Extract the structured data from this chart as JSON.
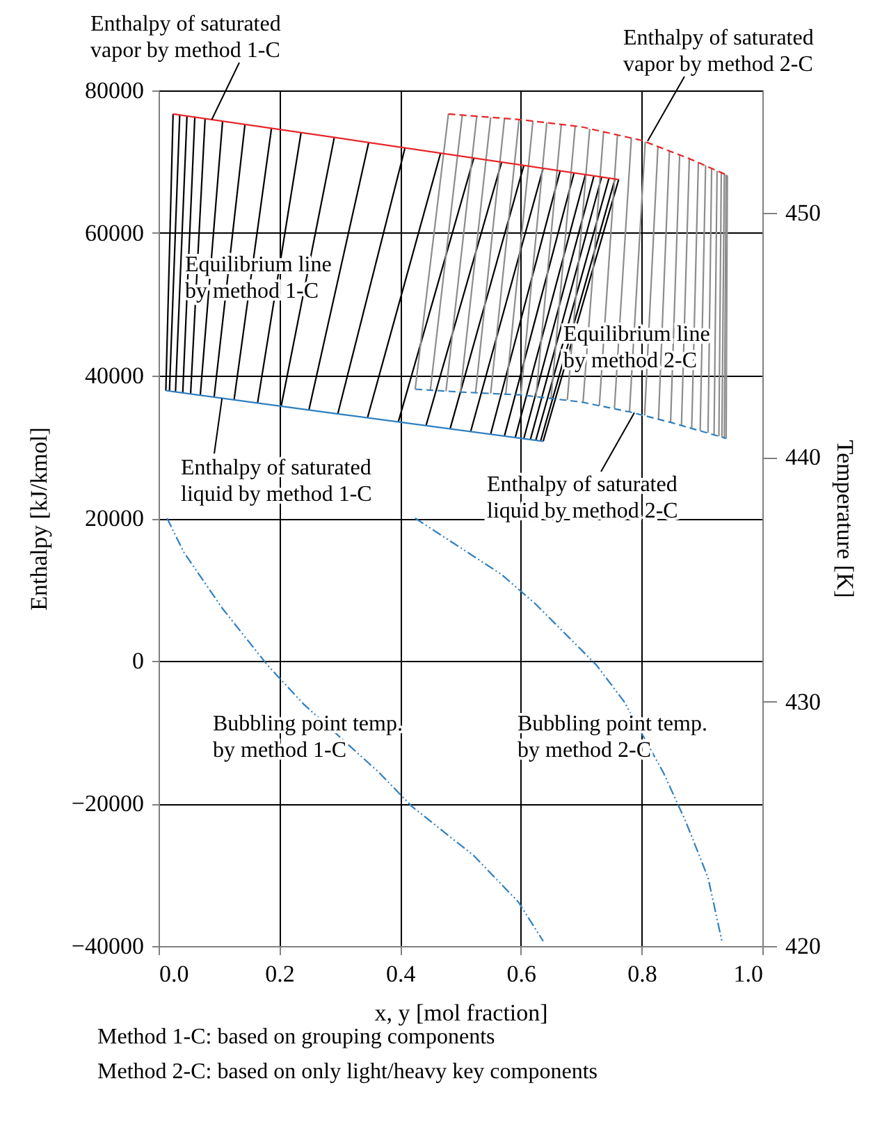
{
  "chart_data": {
    "type": "line",
    "xlabel": "x, y [mol fraction]",
    "ylabel": "Enthalpy [kJ/kmol]",
    "y2label": "Temperature [K]",
    "xlim": [
      0,
      1
    ],
    "xticks": [
      {
        "value": 0,
        "label": "0.0"
      },
      {
        "value": 0.2,
        "label": "0.2"
      },
      {
        "value": 0.4,
        "label": "0.4"
      },
      {
        "value": 0.6,
        "label": "0.6"
      },
      {
        "value": 0.8,
        "label": "0.8"
      },
      {
        "value": 1,
        "label": "1.0"
      }
    ],
    "ylim": [
      -40000,
      80000
    ],
    "yticks": [
      -40000,
      -20000,
      0,
      20000,
      40000,
      60000,
      80000
    ],
    "y2lim": [
      420,
      455
    ],
    "y2ticks": [
      420,
      430,
      440,
      450
    ],
    "grid": true,
    "series": [
      {
        "color": "#000000",
        "x": [
          0.012,
          0.024
        ],
        "values": [
          37900,
          76700
        ]
      },
      {
        "color": "#000000",
        "x": [
          0.018,
          0.035
        ],
        "values": [
          37800,
          76600
        ]
      },
      {
        "color": "#000000",
        "x": [
          0.028,
          0.047
        ],
        "values": [
          37700,
          76400
        ]
      },
      {
        "color": "#000000",
        "x": [
          0.04,
          0.06
        ],
        "values": [
          37600,
          76300
        ]
      },
      {
        "color": "#000000",
        "x": [
          0.053,
          0.077
        ],
        "values": [
          37400,
          76000
        ]
      },
      {
        "color": "#000000",
        "x": [
          0.069,
          0.106
        ],
        "values": [
          37200,
          75700
        ]
      },
      {
        "color": "#000000",
        "x": [
          0.092,
          0.143
        ],
        "values": [
          37000,
          75200
        ]
      },
      {
        "color": "#000000",
        "x": [
          0.125,
          0.187
        ],
        "values": [
          36600,
          74700
        ]
      },
      {
        "color": "#000000",
        "x": [
          0.164,
          0.236
        ],
        "values": [
          36200,
          74100
        ]
      },
      {
        "color": "#000000",
        "x": [
          0.203,
          0.291
        ],
        "values": [
          35700,
          73400
        ]
      },
      {
        "color": "#000000",
        "x": [
          0.249,
          0.348
        ],
        "values": [
          35200,
          72700
        ]
      },
      {
        "color": "#000000",
        "x": [
          0.297,
          0.408
        ],
        "values": [
          34700,
          71900
        ]
      },
      {
        "color": "#000000",
        "x": [
          0.346,
          0.467
        ],
        "values": [
          34100,
          71200
        ]
      },
      {
        "color": "#000000",
        "x": [
          0.397,
          0.522
        ],
        "values": [
          33500,
          70500
        ]
      },
      {
        "color": "#000000",
        "x": [
          0.443,
          0.568
        ],
        "values": [
          33000,
          69900
        ]
      },
      {
        "color": "#000000",
        "x": [
          0.483,
          0.605
        ],
        "values": [
          32600,
          69500
        ]
      },
      {
        "color": "#000000",
        "x": [
          0.517,
          0.637
        ],
        "values": [
          32200,
          69100
        ]
      },
      {
        "color": "#000000",
        "x": [
          0.55,
          0.665
        ],
        "values": [
          31800,
          68700
        ]
      },
      {
        "color": "#000000",
        "x": [
          0.573,
          0.688
        ],
        "values": [
          31600,
          68400
        ]
      },
      {
        "color": "#000000",
        "x": [
          0.591,
          0.707
        ],
        "values": [
          31400,
          68200
        ]
      },
      {
        "color": "#000000",
        "x": [
          0.605,
          0.721
        ],
        "values": [
          31200,
          68000
        ]
      },
      {
        "color": "#000000",
        "x": [
          0.616,
          0.734
        ],
        "values": [
          31100,
          67900
        ]
      },
      {
        "color": "#000000",
        "x": [
          0.625,
          0.746
        ],
        "values": [
          31000,
          67700
        ]
      },
      {
        "color": "#000000",
        "x": [
          0.633,
          0.756
        ],
        "values": [
          30900,
          67600
        ]
      },
      {
        "color": "#000000",
        "x": [
          0.637,
          0.762
        ],
        "values": [
          30800,
          67500
        ]
      },
      {
        "color": "#8c8c8c",
        "x": [
          0.425,
          0.48
        ],
        "values": [
          38100,
          76700
        ]
      },
      {
        "color": "#8c8c8c",
        "x": [
          0.45,
          0.503
        ],
        "values": [
          37900,
          76600
        ]
      },
      {
        "color": "#8c8c8c",
        "x": [
          0.476,
          0.527
        ],
        "values": [
          37800,
          76400
        ]
      },
      {
        "color": "#8c8c8c",
        "x": [
          0.5,
          0.55
        ],
        "values": [
          37700,
          76200
        ]
      },
      {
        "color": "#8c8c8c",
        "x": [
          0.525,
          0.573
        ],
        "values": [
          37600,
          76100
        ]
      },
      {
        "color": "#8c8c8c",
        "x": [
          0.55,
          0.597
        ],
        "values": [
          37500,
          75900
        ]
      },
      {
        "color": "#8c8c8c",
        "x": [
          0.575,
          0.62
        ],
        "values": [
          37400,
          75700
        ]
      },
      {
        "color": "#8c8c8c",
        "x": [
          0.6,
          0.643
        ],
        "values": [
          37300,
          75500
        ]
      },
      {
        "color": "#8c8c8c",
        "x": [
          0.625,
          0.667
        ],
        "values": [
          37000,
          75200
        ]
      },
      {
        "color": "#8c8c8c",
        "x": [
          0.65,
          0.69
        ],
        "values": [
          36800,
          75000
        ]
      },
      {
        "color": "#8c8c8c",
        "x": [
          0.677,
          0.714
        ],
        "values": [
          36600,
          74600
        ]
      },
      {
        "color": "#8c8c8c",
        "x": [
          0.703,
          0.737
        ],
        "values": [
          36300,
          74200
        ]
      },
      {
        "color": "#8c8c8c",
        "x": [
          0.73,
          0.76
        ],
        "values": [
          35800,
          73800
        ]
      },
      {
        "color": "#8c8c8c",
        "x": [
          0.755,
          0.783
        ],
        "values": [
          35400,
          73300
        ]
      },
      {
        "color": "#8c8c8c",
        "x": [
          0.78,
          0.806
        ],
        "values": [
          35000,
          72800
        ]
      },
      {
        "color": "#8c8c8c",
        "x": [
          0.805,
          0.827
        ],
        "values": [
          34400,
          72100
        ]
      },
      {
        "color": "#8c8c8c",
        "x": [
          0.828,
          0.846
        ],
        "values": [
          33900,
          71500
        ]
      },
      {
        "color": "#8c8c8c",
        "x": [
          0.848,
          0.863
        ],
        "values": [
          33400,
          71000
        ]
      },
      {
        "color": "#8c8c8c",
        "x": [
          0.866,
          0.879
        ],
        "values": [
          33000,
          70500
        ]
      },
      {
        "color": "#8c8c8c",
        "x": [
          0.883,
          0.894
        ],
        "values": [
          32600,
          69900
        ]
      },
      {
        "color": "#8c8c8c",
        "x": [
          0.897,
          0.906
        ],
        "values": [
          32300,
          69500
        ]
      },
      {
        "color": "#8c8c8c",
        "x": [
          0.91,
          0.916
        ],
        "values": [
          32000,
          69100
        ]
      },
      {
        "color": "#8c8c8c",
        "x": [
          0.92,
          0.925
        ],
        "values": [
          31700,
          68700
        ]
      },
      {
        "color": "#8c8c8c",
        "x": [
          0.928,
          0.932
        ],
        "values": [
          31500,
          68500
        ]
      },
      {
        "color": "#8c8c8c",
        "x": [
          0.933,
          0.937
        ],
        "values": [
          31400,
          68300
        ]
      },
      {
        "color": "#8c8c8c",
        "x": [
          0.937,
          0.94
        ],
        "values": [
          31300,
          68200
        ]
      },
      {
        "color": "#8c8c8c",
        "x": [
          0.94,
          0.942
        ],
        "values": [
          31200,
          68100
        ]
      },
      {
        "color": "#e8262a",
        "x": [
          0.024,
          0.3,
          0.5,
          0.762
        ],
        "values": [
          76700,
          73300,
          70800,
          67500
        ]
      },
      {
        "color": "#2e7fc0",
        "x": [
          0.012,
          0.3,
          0.637
        ],
        "values": [
          37900,
          34600,
          30800
        ]
      },
      {
        "color": "#e8262a",
        "line_style": "dashed",
        "x": [
          0.48,
          0.6,
          0.7,
          0.8,
          0.88,
          0.942
        ],
        "values": [
          76700,
          75900,
          74900,
          73000,
          70400,
          68100
        ]
      },
      {
        "color": "#2e7fc0",
        "line_style": "dashed",
        "x": [
          0.425,
          0.5,
          0.6,
          0.7,
          0.781,
          0.85,
          0.94
        ],
        "values": [
          38100,
          37700,
          37300,
          36300,
          34900,
          33400,
          31200
        ]
      },
      {
        "color": "#2e7fc0",
        "line_style": "dotted",
        "axis": "y2",
        "x": [
          0.014,
          0.042,
          0.106,
          0.18,
          0.24,
          0.365,
          0.42,
          0.522,
          0.596,
          0.637
        ],
        "values": [
          437.5,
          436.1,
          433.8,
          431.5,
          429.9,
          427.1,
          425.7,
          423.7,
          421.8,
          420.2
        ]
      },
      {
        "color": "#2e7fc0",
        "line_style": "dotted",
        "axis": "y2",
        "x": [
          0.425,
          0.568,
          0.624,
          0.725,
          0.771,
          0.836,
          0.873,
          0.91,
          0.933
        ],
        "values": [
          437.5,
          435.2,
          434.0,
          431.5,
          430.0,
          427.1,
          425.1,
          422.8,
          420.2
        ]
      }
    ],
    "annotations": [
      {
        "text": "Enthalpy of saturated vapor by method 1-C",
        "x": 0.088,
        "y": 75900
      },
      {
        "text": "Enthalpy of saturated vapor by method 2-C",
        "x": 0.81,
        "y": 72900
      },
      "Equilibrium line by method 1-C",
      "Equilibrium line by method 2-C",
      {
        "text": "Enthalpy of saturated liquid by method 1-C",
        "x": 0.105,
        "y": 36800
      },
      {
        "text": "Enthalpy of saturated liquid by method 2-C",
        "x": 0.788,
        "y": 34800
      },
      "Bubbling point temp. by method 1-C",
      "Bubbling point temp. by method 2-C",
      "Method 1-C: based on grouping components",
      "Method 2-C: based on only light/heavy key components"
    ]
  }
}
